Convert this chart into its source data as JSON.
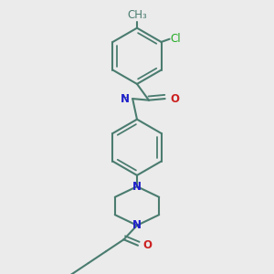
{
  "background_color": "#ebebeb",
  "bond_color": "#4a7c6f",
  "bond_width": 1.5,
  "atom_colors": {
    "N": "#2020cc",
    "O": "#cc2020",
    "Cl": "#22aa22"
  },
  "font_size": 8.5,
  "figsize": [
    3.0,
    3.0
  ],
  "dpi": 100
}
